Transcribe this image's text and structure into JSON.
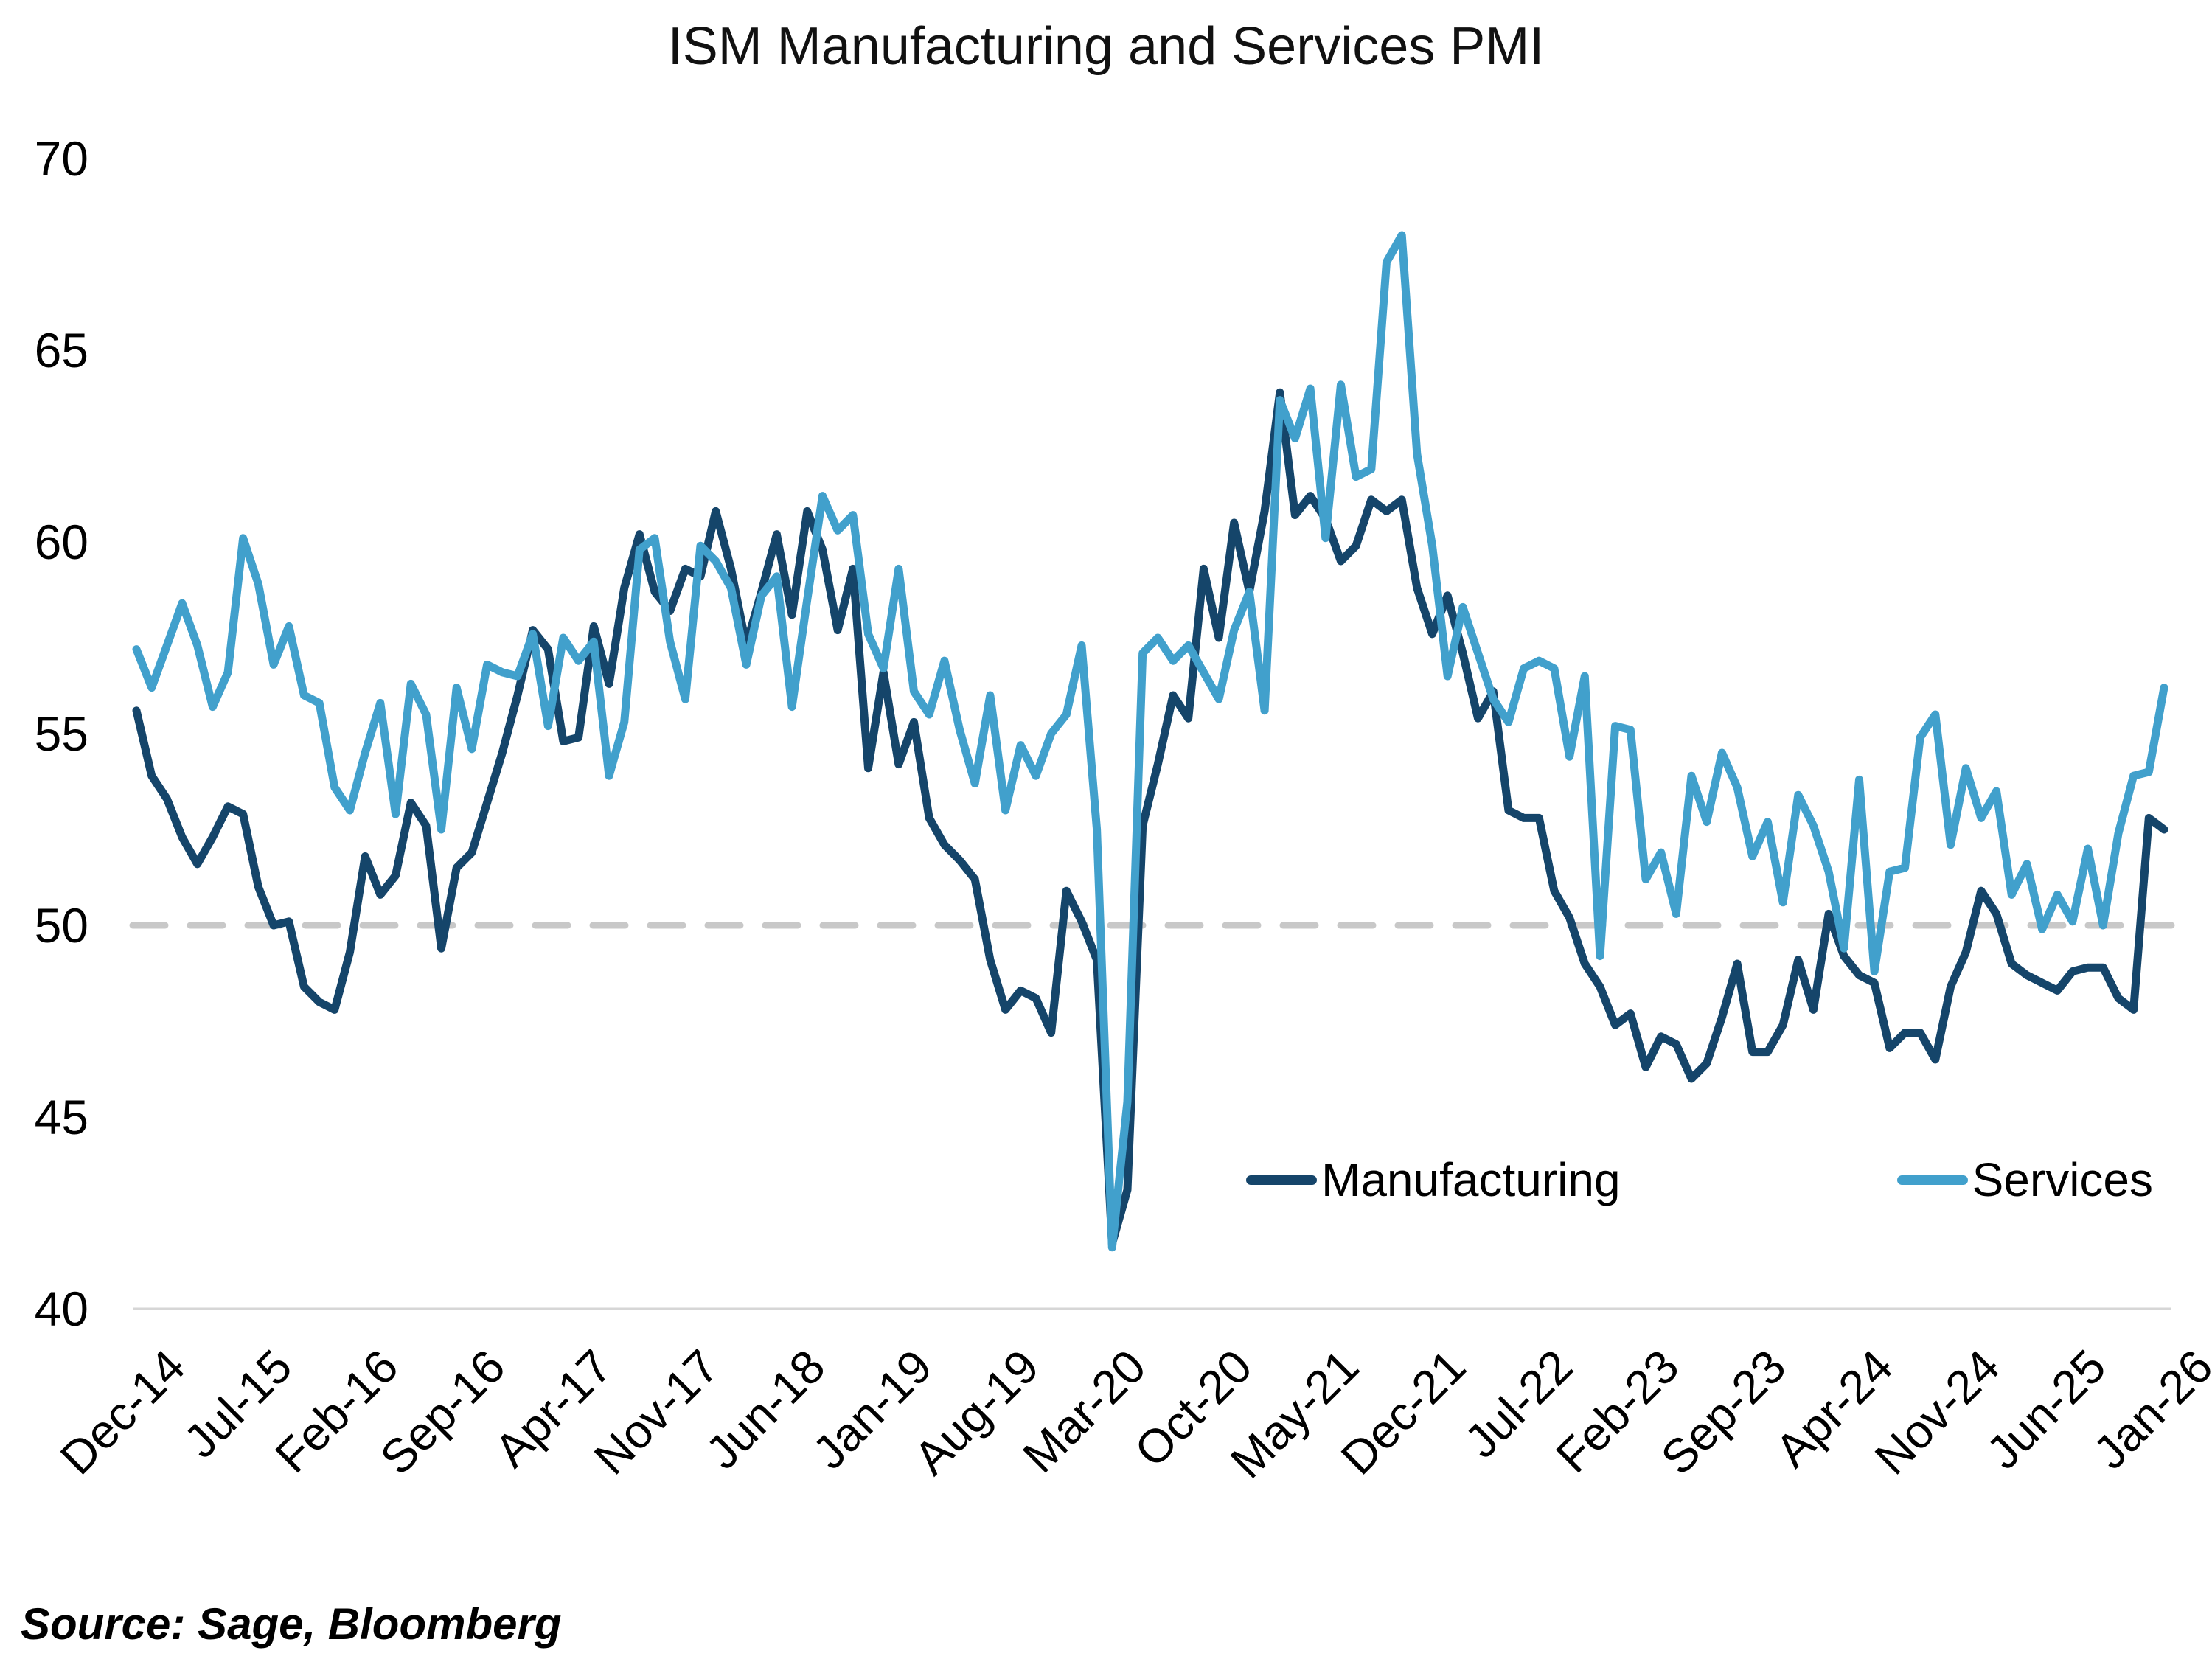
{
  "page": {
    "source_note": "Source: Sage, Bloomberg"
  },
  "chart_data": {
    "type": "line",
    "title": "ISM Manufacturing and Services PMI",
    "x_start": "Dec-14",
    "x_end": "Jan-26",
    "x_frequency": "monthly",
    "tick_interval_months": 7,
    "x_tick_labels": [
      "Dec-14",
      "Jul-15",
      "Feb-16",
      "Sep-16",
      "Apr-17",
      "Nov-17",
      "Jun-18",
      "Jan-19",
      "Aug-19",
      "Mar-20",
      "Oct-20",
      "May-21",
      "Dec-21",
      "Jul-22",
      "Feb-23",
      "Sep-23",
      "Apr-24",
      "Nov-24",
      "Jun-25",
      "Jan-26"
    ],
    "y_ticks": [
      70,
      65,
      60,
      55,
      50,
      45,
      40
    ],
    "ylim": [
      40,
      70
    ],
    "grid": "off",
    "reference_line": {
      "value": 50,
      "style": "dashed",
      "color": "#C8C8C8"
    },
    "axis_line_color": "#D6D6D6",
    "legend_position": "inside-lower-right",
    "series": [
      {
        "name": "Manufacturing",
        "color": "#15456A",
        "values": [
          55.6,
          53.9,
          53.3,
          52.3,
          51.6,
          52.3,
          53.1,
          52.9,
          51.0,
          50.0,
          50.1,
          48.4,
          48.0,
          47.8,
          49.3,
          51.8,
          50.8,
          51.3,
          53.2,
          52.6,
          49.4,
          51.5,
          51.9,
          53.2,
          54.5,
          56.0,
          57.7,
          57.2,
          54.8,
          54.9,
          57.8,
          56.3,
          58.8,
          60.2,
          58.7,
          58.2,
          59.3,
          59.1,
          60.8,
          59.3,
          57.3,
          58.7,
          60.2,
          58.1,
          60.8,
          59.8,
          57.7,
          59.3,
          54.1,
          56.6,
          54.2,
          55.3,
          52.8,
          52.1,
          51.7,
          51.2,
          49.1,
          47.8,
          48.3,
          48.1,
          47.2,
          50.9,
          50.1,
          49.1,
          41.7,
          43.1,
          52.6,
          54.2,
          56.0,
          55.4,
          59.3,
          57.5,
          60.5,
          58.7,
          60.8,
          63.9,
          60.7,
          61.2,
          60.6,
          59.5,
          59.9,
          61.1,
          60.8,
          61.1,
          58.8,
          57.6,
          58.6,
          57.1,
          55.4,
          56.1,
          53.0,
          52.8,
          52.8,
          50.9,
          50.2,
          49.0,
          48.4,
          47.4,
          47.7,
          46.3,
          47.1,
          46.9,
          46.0,
          46.4,
          47.6,
          49.0,
          46.7,
          46.7,
          47.4,
          49.1,
          47.8,
          50.3,
          49.2,
          48.7,
          48.5,
          46.8,
          47.2,
          47.2,
          46.5,
          48.4,
          49.3,
          50.9,
          50.3,
          49.0,
          48.7,
          48.5,
          48.3,
          48.8,
          48.9,
          48.9,
          48.1,
          47.8,
          52.8,
          52.5
        ]
      },
      {
        "name": "Services",
        "color": "#41A0CC",
        "values": [
          57.2,
          56.2,
          57.3,
          58.4,
          57.3,
          55.7,
          56.6,
          60.1,
          58.9,
          56.8,
          57.8,
          56.0,
          55.8,
          53.6,
          53.0,
          54.5,
          55.8,
          52.9,
          56.3,
          55.5,
          52.5,
          56.2,
          54.6,
          56.8,
          56.6,
          56.5,
          57.6,
          55.2,
          57.5,
          56.9,
          57.4,
          53.9,
          55.3,
          59.8,
          60.1,
          57.4,
          55.9,
          59.9,
          59.5,
          58.8,
          56.8,
          58.6,
          59.1,
          55.7,
          58.5,
          61.2,
          60.3,
          60.7,
          57.6,
          56.7,
          59.3,
          56.1,
          55.5,
          56.9,
          55.1,
          53.7,
          56.0,
          53.0,
          54.7,
          53.9,
          55.0,
          55.5,
          57.3,
          52.5,
          41.6,
          45.4,
          57.1,
          57.5,
          56.9,
          57.3,
          56.6,
          55.9,
          57.7,
          58.7,
          55.6,
          63.7,
          62.7,
          64.0,
          60.1,
          64.1,
          61.7,
          61.9,
          67.3,
          68.0,
          62.3,
          59.9,
          56.5,
          58.3,
          57.1,
          55.9,
          55.3,
          56.7,
          56.9,
          56.7,
          54.4,
          56.5,
          49.2,
          55.2,
          55.1,
          51.2,
          51.9,
          50.3,
          53.9,
          52.7,
          54.5,
          53.6,
          51.8,
          52.7,
          50.6,
          53.4,
          52.6,
          51.4,
          49.4,
          53.8,
          48.8,
          51.4,
          51.5,
          54.9,
          55.5,
          52.1,
          54.1,
          52.8,
          53.5,
          50.8,
          51.6,
          49.9,
          50.8,
          50.1,
          52.0,
          50.0,
          52.4,
          53.9,
          54.0,
          56.2
        ]
      }
    ]
  }
}
